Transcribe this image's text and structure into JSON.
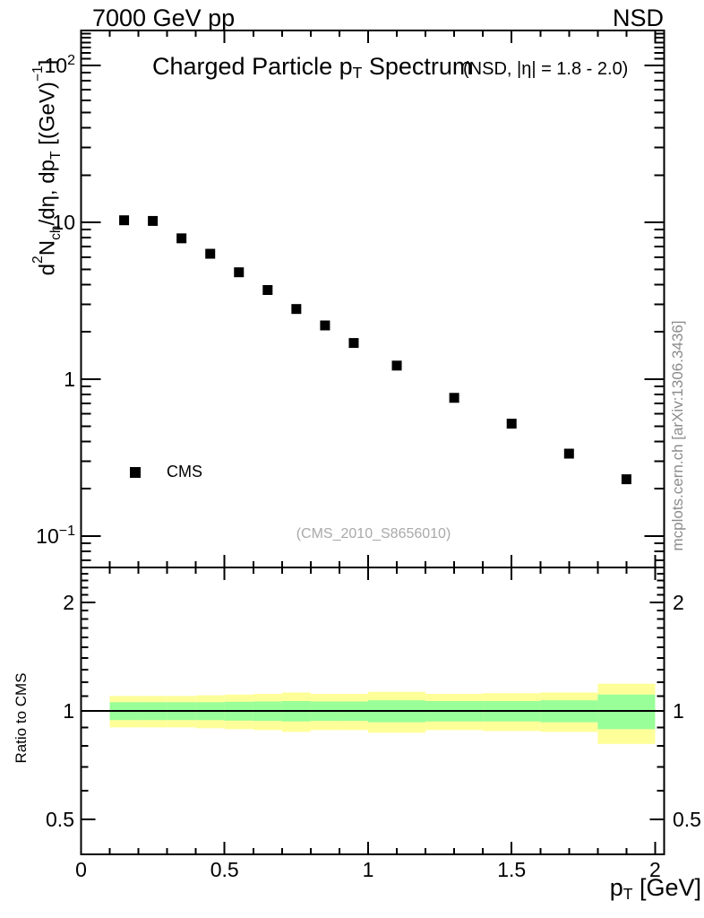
{
  "header": {
    "left": "7000 GeV pp",
    "right": "NSD"
  },
  "title": {
    "parts": [
      {
        "t": "n",
        "v": "Charged Particle p"
      },
      {
        "t": "sub",
        "v": "T"
      },
      {
        "t": "n",
        "v": " Spectrum"
      }
    ],
    "suffix": "(NSD, |η| = 1.8 - 2.0)"
  },
  "legend": {
    "items": [
      {
        "label": "CMS",
        "marker": "filled-square",
        "color": "#000000"
      }
    ]
  },
  "watermark": "(CMS_2010_S8656010)",
  "side_note": "mcplots.cern.ch [arXiv:1306.3436]",
  "axes": {
    "x_title_parts": [
      {
        "t": "n",
        "v": "p"
      },
      {
        "t": "sub",
        "v": "T"
      },
      {
        "t": "n",
        "v": " [GeV]"
      }
    ],
    "y_title_parts": [
      {
        "t": "n",
        "v": "d"
      },
      {
        "t": "sup",
        "v": "2"
      },
      {
        "t": "n",
        "v": "N"
      },
      {
        "t": "sub",
        "v": "ch"
      },
      {
        "t": "n",
        "v": "/dη, dp"
      },
      {
        "t": "sub",
        "v": "T"
      },
      {
        "t": "n",
        "v": " [(GeV)"
      },
      {
        "t": "sup",
        "v": "−1"
      },
      {
        "t": "n",
        "v": "]"
      }
    ],
    "ratio_y_title": "Ratio to CMS"
  },
  "chart_data": {
    "type": "scatter",
    "title": "Charged Particle pT Spectrum (NSD, |η| = 1.8 - 2.0)",
    "xlabel": "pT [GeV]",
    "ylabel": "d2Nch/dη, dpT [(GeV)-1]",
    "x_range": [
      0,
      2.032
    ],
    "y_scale": "log",
    "y_range": [
      0.063,
      167
    ],
    "x_major_ticks": [
      {
        "v": 0,
        "label": "0"
      },
      {
        "v": 0.5,
        "label": "0.5"
      },
      {
        "v": 1,
        "label": "1"
      },
      {
        "v": 1.5,
        "label": "1.5"
      },
      {
        "v": 2,
        "label": "2"
      }
    ],
    "x_minor_step": 0.1,
    "y_major_ticks": [
      {
        "v": 100,
        "base": "10",
        "exp": "2"
      },
      {
        "v": 10,
        "base": "10",
        "exp": ""
      },
      {
        "v": 1,
        "base": "1",
        "exp": ""
      },
      {
        "v": 0.1,
        "base": "10",
        "exp": "−1"
      }
    ],
    "y_extra_minor_ticks": [
      110,
      120,
      130,
      140,
      150,
      160
    ],
    "series": [
      {
        "name": "CMS",
        "marker": "square",
        "color": "#000000",
        "x": [
          0.15,
          0.25,
          0.35,
          0.45,
          0.55,
          0.65,
          0.75,
          0.85,
          0.95,
          1.1,
          1.3,
          1.5,
          1.7,
          1.9
        ],
        "values": [
          10.3,
          10.2,
          7.9,
          6.3,
          4.8,
          3.7,
          2.8,
          2.2,
          1.7,
          1.22,
          0.76,
          0.52,
          0.335,
          0.23
        ]
      }
    ],
    "ratio": {
      "label": "Ratio to CMS",
      "y_scale": "log",
      "y_range": [
        0.4,
        2.5
      ],
      "y_major_ticks": [
        {
          "v": 2,
          "label": "2"
        },
        {
          "v": 1,
          "label": "1"
        },
        {
          "v": 0.5,
          "label": "0.5"
        }
      ],
      "y_minor_step": 0.1,
      "reference_line": 1,
      "outer_color": "#ffff99",
      "inner_color": "#99ff99",
      "bands": [
        {
          "x0": 0.1,
          "x1": 0.2,
          "outer": 0.1,
          "inner": 0.057
        },
        {
          "x0": 0.2,
          "x1": 0.3,
          "outer": 0.1,
          "inner": 0.057
        },
        {
          "x0": 0.3,
          "x1": 0.4,
          "outer": 0.1,
          "inner": 0.057
        },
        {
          "x0": 0.4,
          "x1": 0.5,
          "outer": 0.105,
          "inner": 0.057
        },
        {
          "x0": 0.5,
          "x1": 0.6,
          "outer": 0.11,
          "inner": 0.06
        },
        {
          "x0": 0.6,
          "x1": 0.7,
          "outer": 0.115,
          "inner": 0.062
        },
        {
          "x0": 0.7,
          "x1": 0.8,
          "outer": 0.125,
          "inner": 0.065
        },
        {
          "x0": 0.8,
          "x1": 0.9,
          "outer": 0.115,
          "inner": 0.062
        },
        {
          "x0": 0.9,
          "x1": 1.0,
          "outer": 0.115,
          "inner": 0.062
        },
        {
          "x0": 1.0,
          "x1": 1.2,
          "outer": 0.13,
          "inner": 0.07
        },
        {
          "x0": 1.2,
          "x1": 1.4,
          "outer": 0.115,
          "inner": 0.065
        },
        {
          "x0": 1.4,
          "x1": 1.6,
          "outer": 0.12,
          "inner": 0.065
        },
        {
          "x0": 1.6,
          "x1": 1.8,
          "outer": 0.125,
          "inner": 0.07
        },
        {
          "x0": 1.8,
          "x1": 2.0,
          "outer": 0.19,
          "inner": 0.11
        }
      ]
    }
  }
}
